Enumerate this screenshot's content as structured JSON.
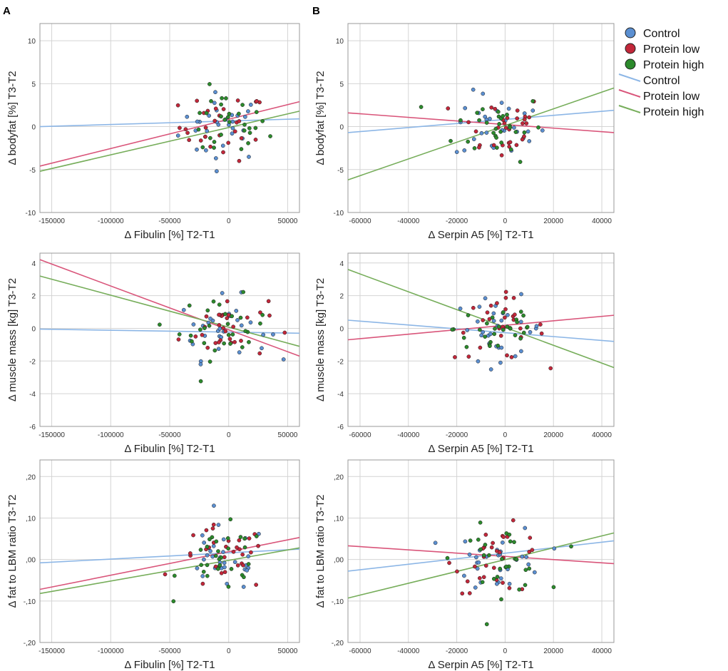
{
  "panel_letters": [
    "A",
    "B"
  ],
  "legend": {
    "items": [
      {
        "kind": "marker",
        "label": "Control",
        "color": "#5b8fd1"
      },
      {
        "kind": "marker",
        "label": "Protein low",
        "color": "#c2273a"
      },
      {
        "kind": "marker",
        "label": "Protein high",
        "color": "#2c8a2c"
      },
      {
        "kind": "line",
        "label": "Control",
        "color": "#8cb6e6"
      },
      {
        "kind": "line",
        "label": "Protein low",
        "color": "#d9557a"
      },
      {
        "kind": "line",
        "label": "Protein high",
        "color": "#76ad5a"
      }
    ]
  },
  "chart_data": [
    {
      "type": "scatter",
      "panel": "A-top",
      "xlabel": "Δ Fibulin [%] T2-T1",
      "ylabel": "Δ bodyfat [%] T3-T2",
      "xlim": [
        -160000,
        60000
      ],
      "ylim": [
        -10,
        12
      ],
      "x_ticks": [
        -150000,
        -100000,
        -50000,
        0,
        50000
      ],
      "x_tick_labels": [
        "-150000",
        "-100000",
        "-50000",
        "0",
        "50000"
      ],
      "y_ticks": [
        -10,
        -5,
        0,
        5,
        10
      ],
      "y_tick_labels": [
        "-10",
        "-5",
        "0",
        "5",
        "10"
      ],
      "fit_lines": [
        {
          "group": "Control",
          "x": [
            -160000,
            60000
          ],
          "y": [
            0.0,
            0.9
          ]
        },
        {
          "group": "Protein low",
          "x": [
            -160000,
            60000
          ],
          "y": [
            -4.6,
            2.9
          ]
        },
        {
          "group": "Protein high",
          "x": [
            -160000,
            60000
          ],
          "y": [
            -5.2,
            1.8
          ]
        }
      ]
    },
    {
      "type": "scatter",
      "panel": "B-top",
      "xlabel": "Δ Serpin A5 [%] T2-T1",
      "ylabel": "Δ bodyfat [%] T3-T2",
      "xlim": [
        -65000,
        45000
      ],
      "ylim": [
        -10,
        12
      ],
      "x_ticks": [
        -60000,
        -40000,
        -20000,
        0,
        20000,
        40000
      ],
      "x_tick_labels": [
        "-60000",
        "-40000",
        "-20000",
        "0",
        "20000",
        "40000"
      ],
      "y_ticks": [
        -10,
        -5,
        0,
        5,
        10
      ],
      "y_tick_labels": [
        "-10",
        "-5",
        "0",
        "5",
        "10"
      ],
      "fit_lines": [
        {
          "group": "Control",
          "x": [
            -65000,
            45000
          ],
          "y": [
            -0.7,
            1.9
          ]
        },
        {
          "group": "Protein low",
          "x": [
            -65000,
            45000
          ],
          "y": [
            1.6,
            -0.7
          ]
        },
        {
          "group": "Protein high",
          "x": [
            -65000,
            45000
          ],
          "y": [
            -6.2,
            4.5
          ]
        }
      ]
    },
    {
      "type": "scatter",
      "panel": "A-middle",
      "xlabel": "Δ Fibulin [%] T2-T1",
      "ylabel": "Δ muscle mass [kg] T3-T2",
      "xlim": [
        -160000,
        60000
      ],
      "ylim": [
        -6,
        4.6
      ],
      "x_ticks": [
        -150000,
        -100000,
        -50000,
        0,
        50000
      ],
      "x_tick_labels": [
        "-150000",
        "-100000",
        "-50000",
        "0",
        "50000"
      ],
      "y_ticks": [
        -6,
        -4,
        -2,
        0,
        2,
        4
      ],
      "y_tick_labels": [
        "-6",
        "-4",
        "-2",
        "0",
        "2",
        "4"
      ],
      "fit_lines": [
        {
          "group": "Control",
          "x": [
            -160000,
            60000
          ],
          "y": [
            -0.05,
            -0.3
          ]
        },
        {
          "group": "Protein low",
          "x": [
            -160000,
            60000
          ],
          "y": [
            4.2,
            -1.7
          ]
        },
        {
          "group": "Protein high",
          "x": [
            -160000,
            60000
          ],
          "y": [
            3.2,
            -1.1
          ]
        }
      ]
    },
    {
      "type": "scatter",
      "panel": "B-middle",
      "xlabel": "Δ Serpin A5 [%] T2-T1",
      "ylabel": "Δ muscle mass [kg] T3-T2",
      "xlim": [
        -65000,
        45000
      ],
      "ylim": [
        -6,
        4.6
      ],
      "x_ticks": [
        -60000,
        -40000,
        -20000,
        0,
        20000,
        40000
      ],
      "x_tick_labels": [
        "-60000",
        "-40000",
        "-20000",
        "0",
        "20000",
        "40000"
      ],
      "y_ticks": [
        -6,
        -4,
        -2,
        0,
        2,
        4
      ],
      "y_tick_labels": [
        "-6",
        "-4",
        "-2",
        "0",
        "2",
        "4"
      ],
      "fit_lines": [
        {
          "group": "Control",
          "x": [
            -65000,
            45000
          ],
          "y": [
            0.5,
            -0.8
          ]
        },
        {
          "group": "Protein low",
          "x": [
            -65000,
            45000
          ],
          "y": [
            -0.7,
            0.8
          ]
        },
        {
          "group": "Protein high",
          "x": [
            -65000,
            45000
          ],
          "y": [
            3.6,
            -2.4
          ]
        }
      ]
    },
    {
      "type": "scatter",
      "panel": "A-bottom",
      "xlabel": "Δ Fibulin [%] T2-T1",
      "ylabel": "Δ fat to LBM ratio T3-T2",
      "xlim": [
        -160000,
        60000
      ],
      "ylim": [
        -0.2,
        0.24
      ],
      "x_ticks": [
        -150000,
        -100000,
        -50000,
        0,
        50000
      ],
      "x_tick_labels": [
        "-150000",
        "-100000",
        "-50000",
        "0",
        "50000"
      ],
      "y_ticks": [
        -0.2,
        -0.1,
        0,
        0.1,
        0.2
      ],
      "y_tick_labels": [
        "-,20",
        "-,10",
        ",00",
        ",10",
        ",20"
      ],
      "fit_lines": [
        {
          "group": "Control",
          "x": [
            -160000,
            60000
          ],
          "y": [
            -0.008,
            0.025
          ]
        },
        {
          "group": "Protein low",
          "x": [
            -160000,
            60000
          ],
          "y": [
            -0.072,
            0.053
          ]
        },
        {
          "group": "Protein high",
          "x": [
            -160000,
            60000
          ],
          "y": [
            -0.082,
            0.028
          ]
        }
      ]
    },
    {
      "type": "scatter",
      "panel": "B-bottom",
      "xlabel": "Δ Serpin A5 [%] T2-T1",
      "ylabel": "Δ fat to LBM ratio T3-T2",
      "xlim": [
        -65000,
        45000
      ],
      "ylim": [
        -0.2,
        0.24
      ],
      "x_ticks": [
        -60000,
        -40000,
        -20000,
        0,
        20000,
        40000
      ],
      "x_tick_labels": [
        "-60000",
        "-40000",
        "-20000",
        "0",
        "20000",
        "40000"
      ],
      "y_ticks": [
        -0.2,
        -0.1,
        0,
        0.1,
        0.2
      ],
      "y_tick_labels": [
        "-,20",
        "-,10",
        ",00",
        ",10",
        ",20"
      ],
      "fit_lines": [
        {
          "group": "Control",
          "x": [
            -65000,
            45000
          ],
          "y": [
            -0.028,
            0.045
          ]
        },
        {
          "group": "Protein low",
          "x": [
            -65000,
            45000
          ],
          "y": [
            0.033,
            -0.01
          ]
        },
        {
          "group": "Protein high",
          "x": [
            -65000,
            45000
          ],
          "y": [
            -0.093,
            0.064
          ]
        }
      ]
    }
  ]
}
